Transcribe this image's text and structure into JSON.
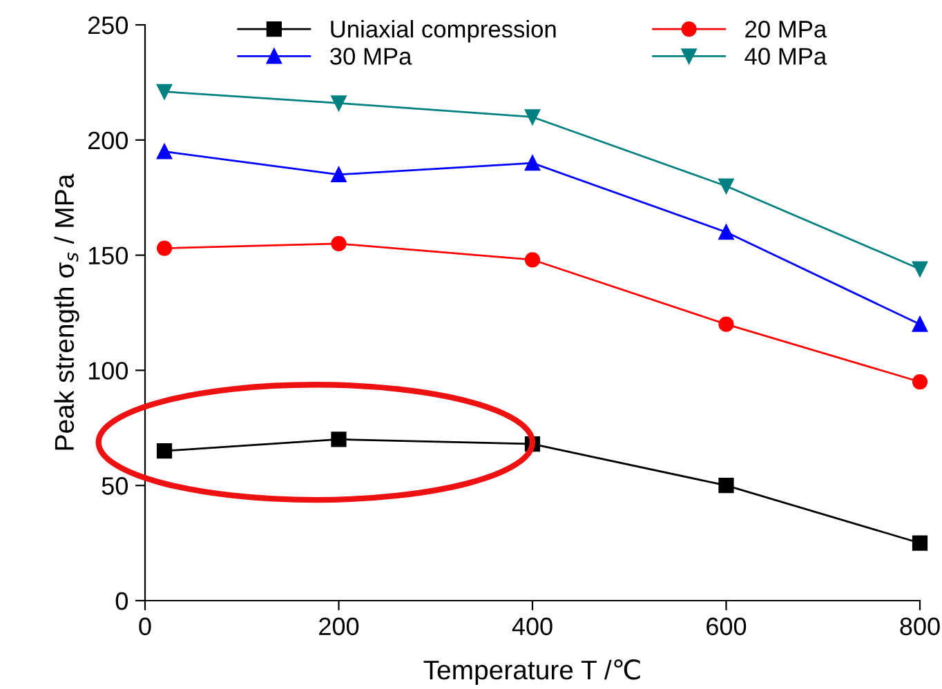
{
  "chart_data": {
    "type": "line",
    "xlabel": "Temperature T /℃",
    "ylabel": "Peak strength σ$_{s}$ / MPa",
    "x": [
      20,
      200,
      400,
      600,
      800
    ],
    "series": [
      {
        "name": "Uniaxial compression",
        "color": "#000000",
        "marker": "square",
        "values": [
          65,
          70,
          68,
          50,
          25
        ]
      },
      {
        "name": "20 MPa",
        "color": "#ff0000",
        "marker": "circle",
        "values": [
          153,
          155,
          148,
          120,
          95
        ]
      },
      {
        "name": "30 MPa",
        "color": "#0000ff",
        "marker": "triangle",
        "values": [
          195,
          185,
          190,
          160,
          120
        ]
      },
      {
        "name": "40 MPa",
        "color": "#008080",
        "marker": "triangle_down",
        "values": [
          221,
          216,
          210,
          180,
          144
        ]
      }
    ],
    "xlim": [
      0,
      800
    ],
    "xticks": [
      0,
      200,
      400,
      600,
      800
    ],
    "ylim": [
      0,
      250
    ],
    "yticks": [
      0,
      50,
      100,
      150,
      200,
      250
    ],
    "grid": false,
    "legend": "top",
    "line_style": "solid"
  }
}
